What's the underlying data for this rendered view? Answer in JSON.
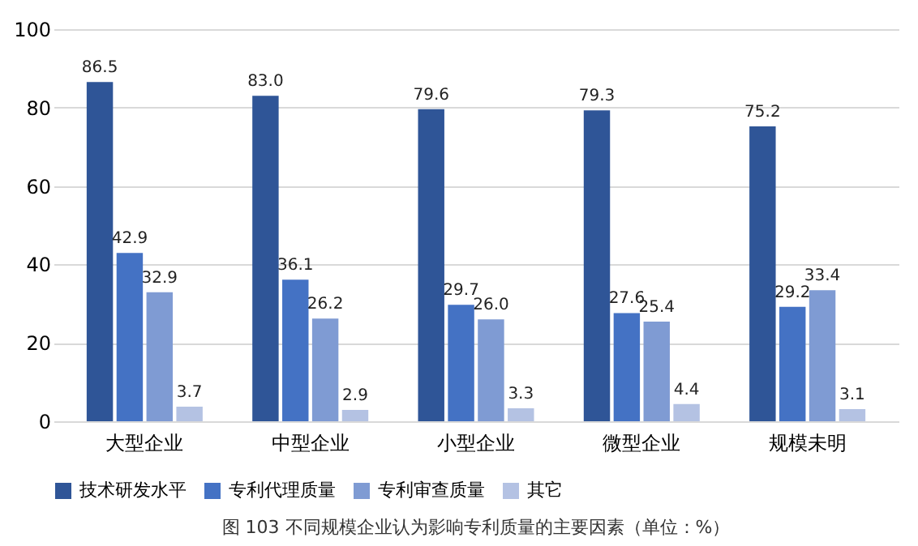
{
  "chart_data": {
    "type": "bar",
    "categories": [
      "大型企业",
      "中型企业",
      "小型企业",
      "微型企业",
      "规模未明"
    ],
    "series": [
      {
        "name": "技术研发水平",
        "color": "#2f5597",
        "values": [
          86.5,
          83.0,
          79.6,
          79.3,
          75.2
        ],
        "value_labels": [
          "86.5",
          "83.0",
          "79.6",
          "79.3",
          "75.2"
        ]
      },
      {
        "name": "专利代理质量",
        "color": "#4472c4",
        "values": [
          42.9,
          36.1,
          29.7,
          27.6,
          29.2
        ],
        "value_labels": [
          "42.9",
          "36.1",
          "29.7",
          "27.6",
          "29.2"
        ]
      },
      {
        "name": "专利审查质量",
        "color": "#7f9bd3",
        "values": [
          32.9,
          26.2,
          26.0,
          25.4,
          33.4
        ],
        "value_labels": [
          "32.9",
          "26.2",
          "26.0",
          "25.4",
          "33.4"
        ]
      },
      {
        "name": "其它",
        "color": "#b4c2e3",
        "values": [
          3.7,
          2.9,
          3.3,
          4.4,
          3.1
        ],
        "value_labels": [
          "3.7",
          "2.9",
          "3.3",
          "4.4",
          "3.1"
        ]
      }
    ],
    "ylim": [
      0,
      100
    ],
    "yticks": [
      0,
      20,
      40,
      60,
      80,
      100
    ],
    "grid": "y",
    "legend": "bottom",
    "annotations": [
      "图 103 不同规模企业认为影响专利质量的主要因素（单位：%）"
    ]
  }
}
